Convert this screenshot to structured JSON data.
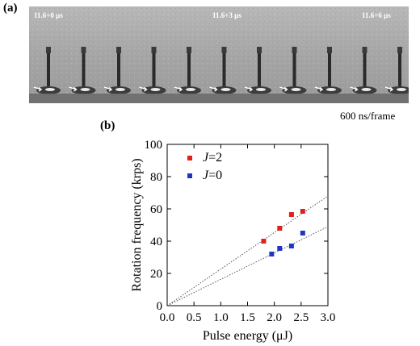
{
  "panel_a": {
    "label": "(a)",
    "timestamps": [
      "11.6+0 μs",
      "11.6+3 μs",
      "11.6+6 μs"
    ],
    "frame_count": 12,
    "frame_note": "600 ns/frame"
  },
  "panel_b": {
    "label": "(b)"
  },
  "chart_data": {
    "type": "scatter",
    "xlabel": "Pulse energy (μJ)",
    "ylabel": "Rotation frequency (krps)",
    "xlim": [
      0,
      3.0
    ],
    "ylim": [
      0,
      100
    ],
    "x_ticks": [
      "0.0",
      "0.5",
      "1.0",
      "1.5",
      "2.0",
      "2.5",
      "3.0"
    ],
    "y_ticks": [
      "0",
      "20",
      "40",
      "60",
      "80",
      "100"
    ],
    "legend_position": "top-left",
    "series": [
      {
        "name": "J=2",
        "name_italic": "J",
        "name_rest": "=2",
        "color": "#e0201b",
        "x": [
          1.8,
          2.1,
          2.32,
          2.53
        ],
        "y": [
          40,
          48,
          56.5,
          58.5
        ],
        "fit_line": {
          "x": [
            0,
            3.0
          ],
          "y": [
            0,
            68
          ]
        }
      },
      {
        "name": "J=0",
        "name_italic": "J",
        "name_rest": "=0",
        "color": "#1c35c8",
        "x": [
          1.95,
          2.1,
          2.32,
          2.53
        ],
        "y": [
          32,
          35.5,
          37,
          45
        ],
        "fit_line": {
          "x": [
            0,
            3.0
          ],
          "y": [
            0,
            49
          ]
        }
      }
    ]
  }
}
